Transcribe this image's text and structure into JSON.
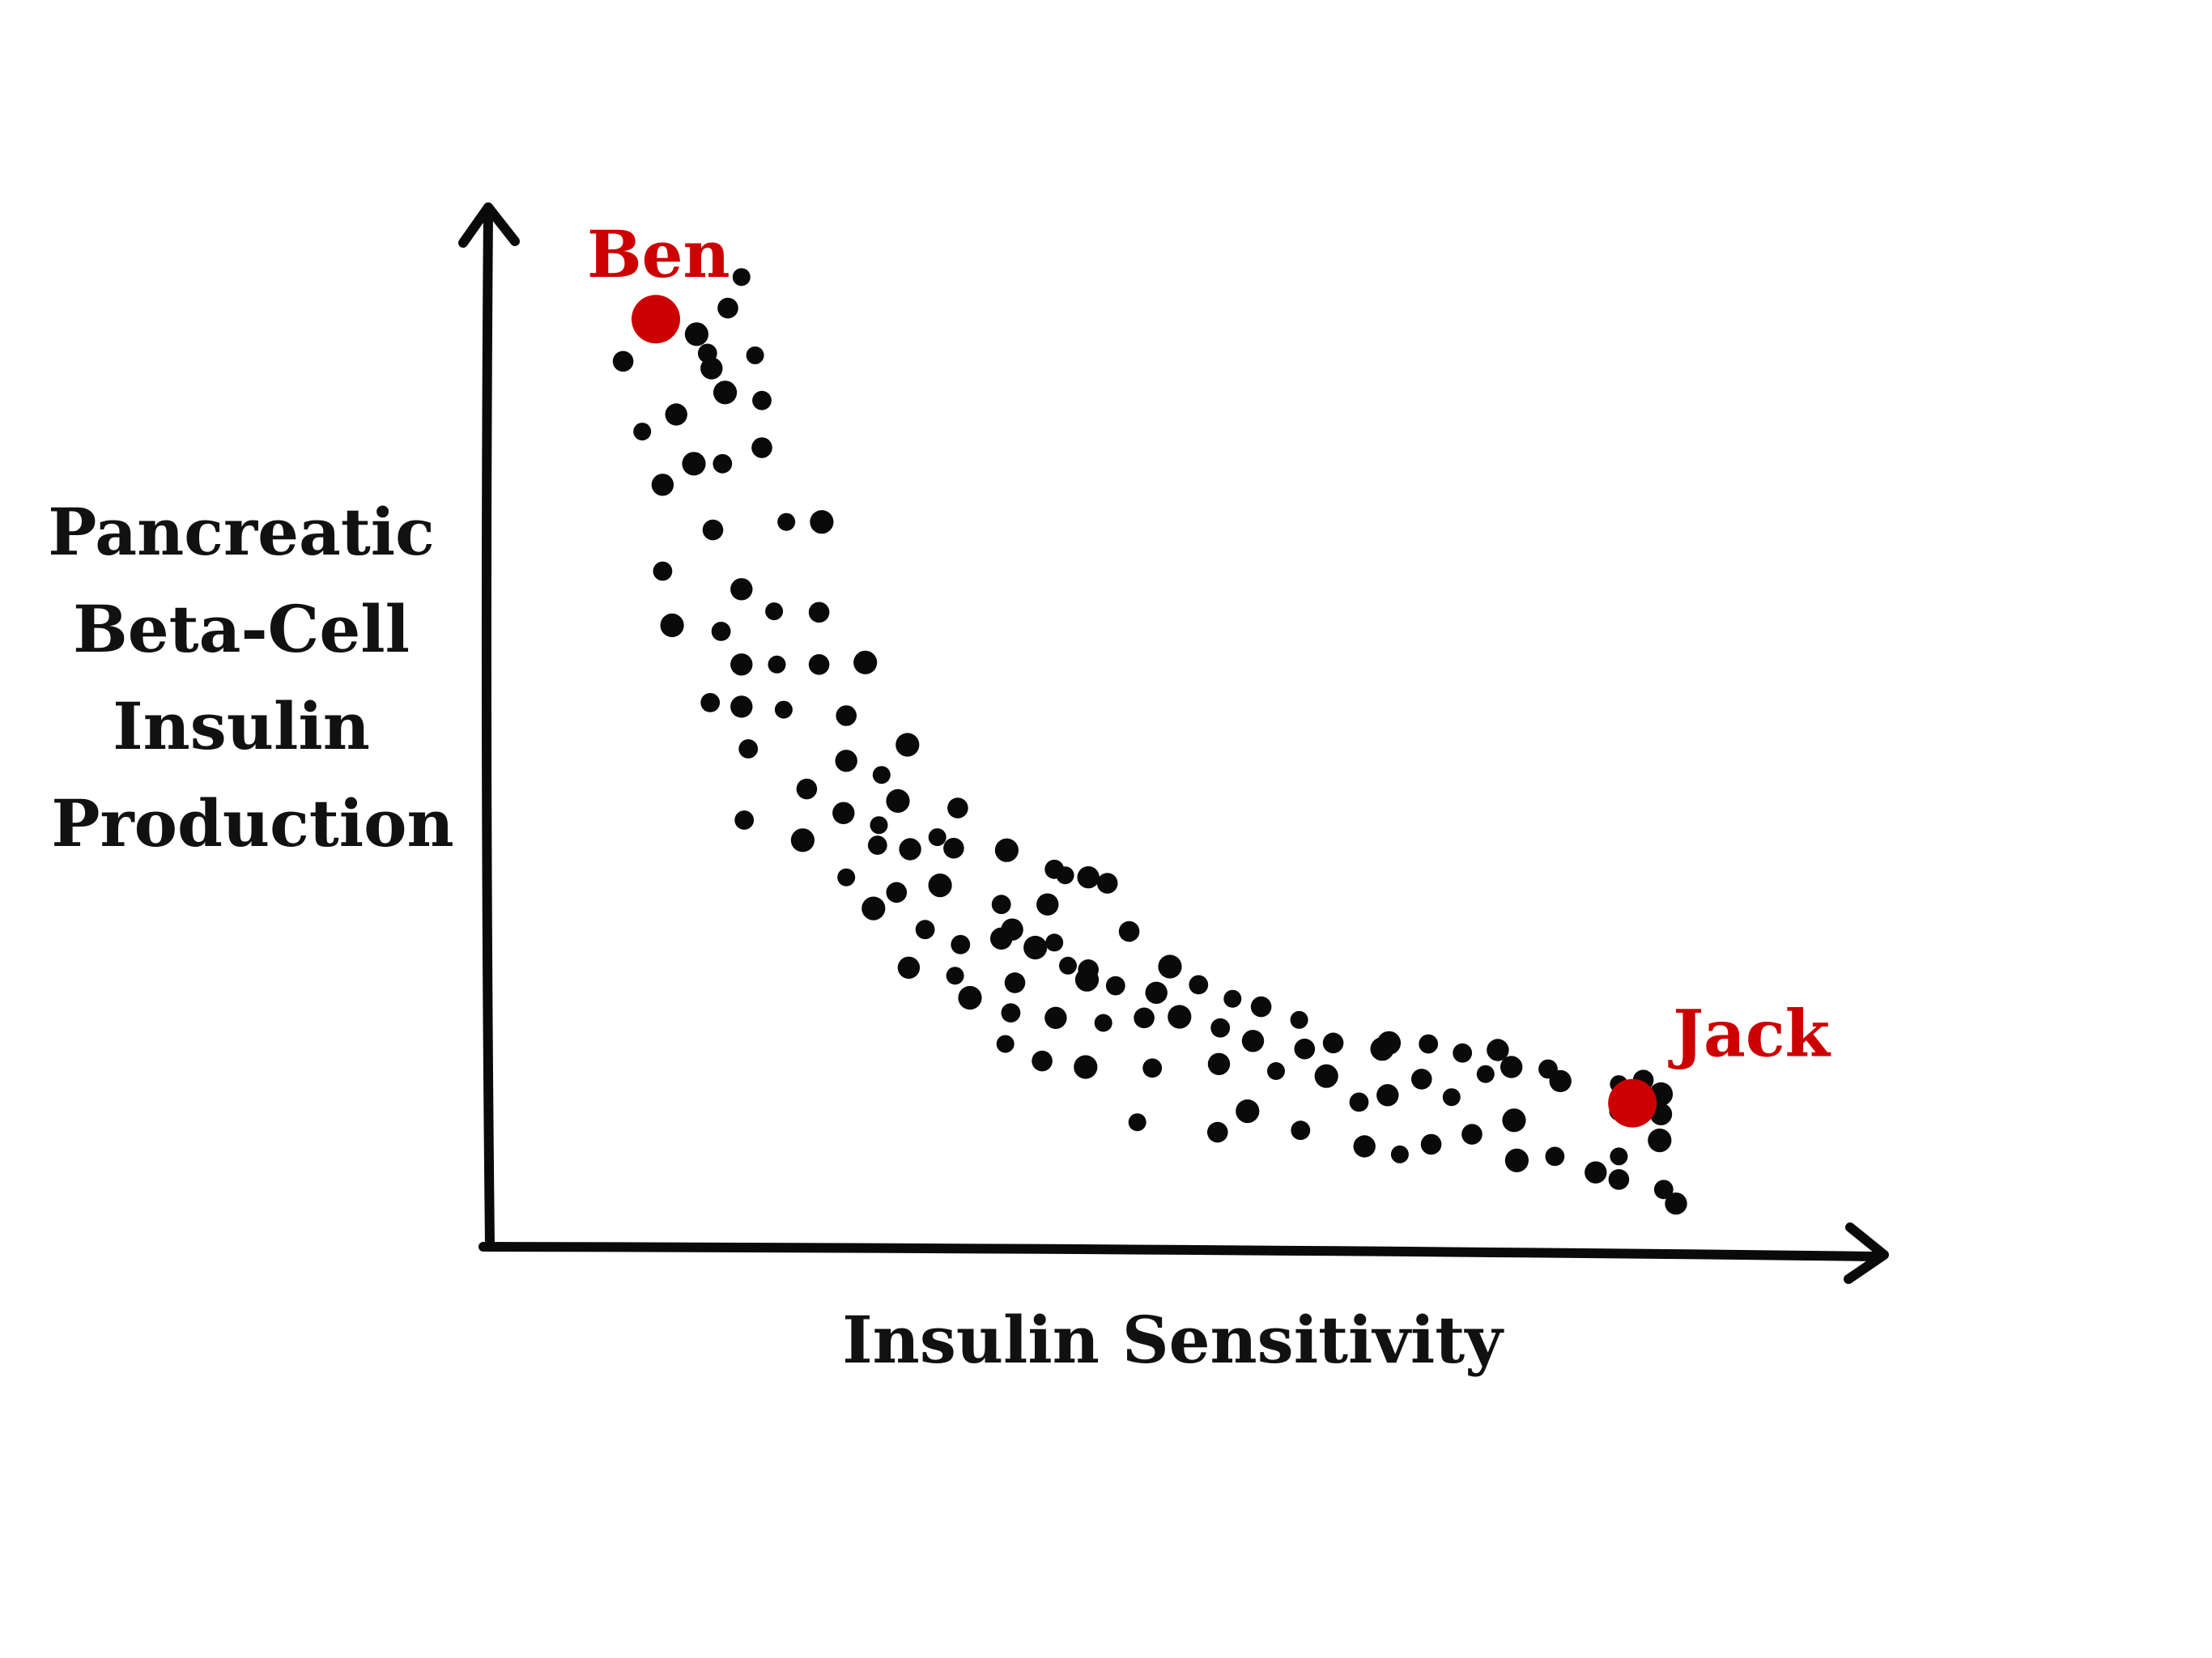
{
  "chart_data": {
    "type": "scatter",
    "title": "",
    "xlabel": "Insulin Sensitivity",
    "ylabel_lines": [
      "Pancreatic",
      "Beta-Cell",
      "Insulin",
      "Production"
    ],
    "xlim": [
      0,
      100
    ],
    "ylim": [
      0,
      100
    ],
    "grid": false,
    "ticks": false,
    "point_color": "#0a0a0a",
    "highlight_color": "#cc0000",
    "series": [
      {
        "name": "population",
        "points": [
          [
            18.5,
            96.6
          ],
          [
            17.5,
            93.5
          ],
          [
            15.2,
            90.9
          ],
          [
            16.0,
            89.0
          ],
          [
            16.3,
            87.5
          ],
          [
            19.5,
            88.8
          ],
          [
            9.8,
            88.2
          ],
          [
            17.3,
            85.1
          ],
          [
            20.0,
            84.3
          ],
          [
            13.7,
            82.9
          ],
          [
            11.2,
            81.2
          ],
          [
            20.0,
            79.6
          ],
          [
            15.0,
            78.0
          ],
          [
            17.1,
            78.0
          ],
          [
            12.7,
            75.9
          ],
          [
            21.8,
            72.2
          ],
          [
            16.4,
            71.4
          ],
          [
            24.4,
            72.2
          ],
          [
            12.7,
            67.3
          ],
          [
            18.5,
            65.5
          ],
          [
            20.9,
            63.3
          ],
          [
            24.2,
            63.2
          ],
          [
            13.4,
            61.9
          ],
          [
            17.0,
            61.3
          ],
          [
            18.5,
            58.0
          ],
          [
            21.1,
            58.0
          ],
          [
            24.2,
            58.0
          ],
          [
            27.6,
            58.2
          ],
          [
            16.2,
            54.2
          ],
          [
            18.5,
            53.8
          ],
          [
            21.6,
            53.5
          ],
          [
            26.2,
            52.9
          ],
          [
            30.7,
            50.0
          ],
          [
            19.0,
            49.6
          ],
          [
            26.2,
            48.4
          ],
          [
            28.8,
            47.0
          ],
          [
            23.3,
            45.6
          ],
          [
            30.0,
            44.4
          ],
          [
            18.7,
            42.5
          ],
          [
            26.0,
            43.2
          ],
          [
            28.6,
            42.0
          ],
          [
            34.4,
            43.7
          ],
          [
            23.0,
            40.5
          ],
          [
            28.5,
            40.0
          ],
          [
            30.9,
            39.6
          ],
          [
            32.9,
            40.8
          ],
          [
            34.1,
            39.7
          ],
          [
            38.0,
            39.5
          ],
          [
            41.5,
            37.6
          ],
          [
            44.0,
            36.8
          ],
          [
            26.2,
            36.8
          ],
          [
            29.9,
            35.3
          ],
          [
            33.1,
            36.0
          ],
          [
            37.6,
            34.1
          ],
          [
            41.0,
            34.1
          ],
          [
            42.3,
            37.0
          ],
          [
            45.4,
            36.2
          ],
          [
            28.2,
            33.7
          ],
          [
            32.0,
            31.6
          ],
          [
            38.4,
            31.6
          ],
          [
            41.5,
            30.3
          ],
          [
            47.0,
            31.4
          ],
          [
            40.1,
            29.8
          ],
          [
            34.6,
            30.1
          ],
          [
            37.6,
            30.7
          ],
          [
            42.5,
            28.0
          ],
          [
            44.0,
            27.6
          ],
          [
            50.0,
            27.9
          ],
          [
            52.1,
            26.1
          ],
          [
            30.8,
            27.8
          ],
          [
            34.2,
            27.0
          ],
          [
            38.6,
            26.3
          ],
          [
            43.9,
            26.6
          ],
          [
            46.0,
            26.0
          ],
          [
            49.0,
            25.3
          ],
          [
            54.6,
            24.7
          ],
          [
            56.7,
            23.9
          ],
          [
            35.3,
            24.8
          ],
          [
            38.3,
            23.3
          ],
          [
            41.6,
            22.8
          ],
          [
            45.1,
            22.3
          ],
          [
            48.1,
            22.8
          ],
          [
            50.7,
            22.9
          ],
          [
            53.7,
            21.8
          ],
          [
            56.1,
            20.5
          ],
          [
            59.5,
            22.6
          ],
          [
            62.0,
            20.3
          ],
          [
            66.1,
            20.3
          ],
          [
            69.0,
            20.2
          ],
          [
            74.1,
            19.6
          ],
          [
            37.9,
            20.2
          ],
          [
            40.6,
            18.5
          ],
          [
            43.8,
            17.9
          ],
          [
            48.7,
            17.8
          ],
          [
            53.6,
            18.2
          ],
          [
            57.8,
            17.5
          ],
          [
            59.9,
            19.7
          ],
          [
            65.6,
            19.7
          ],
          [
            71.5,
            19.3
          ],
          [
            75.1,
            17.9
          ],
          [
            73.2,
            17.2
          ],
          [
            68.5,
            16.7
          ],
          [
            61.5,
            17.0
          ],
          [
            63.9,
            14.4
          ],
          [
            66.0,
            15.1
          ],
          [
            70.7,
            14.9
          ],
          [
            72.2,
            11.2
          ],
          [
            75.3,
            12.6
          ],
          [
            77.8,
            17.7
          ],
          [
            78.7,
            16.5
          ],
          [
            83.0,
            16.2
          ],
          [
            84.8,
            16.6
          ],
          [
            86.1,
            15.2
          ],
          [
            83.0,
            13.5
          ],
          [
            86.1,
            13.2
          ],
          [
            47.6,
            12.4
          ],
          [
            53.5,
            11.4
          ],
          [
            55.7,
            13.5
          ],
          [
            59.6,
            11.6
          ],
          [
            64.3,
            10.0
          ],
          [
            66.9,
            9.2
          ],
          [
            69.2,
            10.2
          ],
          [
            75.5,
            8.6
          ],
          [
            78.3,
            9.0
          ],
          [
            81.3,
            7.4
          ],
          [
            83.0,
            9.0
          ],
          [
            83.0,
            6.7
          ],
          [
            86.0,
            10.6
          ],
          [
            86.3,
            5.7
          ],
          [
            87.2,
            4.3
          ]
        ]
      }
    ],
    "highlights": [
      {
        "label": "Ben",
        "x": 12.2,
        "y": 92.4
      },
      {
        "label": "Jack",
        "x": 84.0,
        "y": 14.3
      }
    ]
  }
}
